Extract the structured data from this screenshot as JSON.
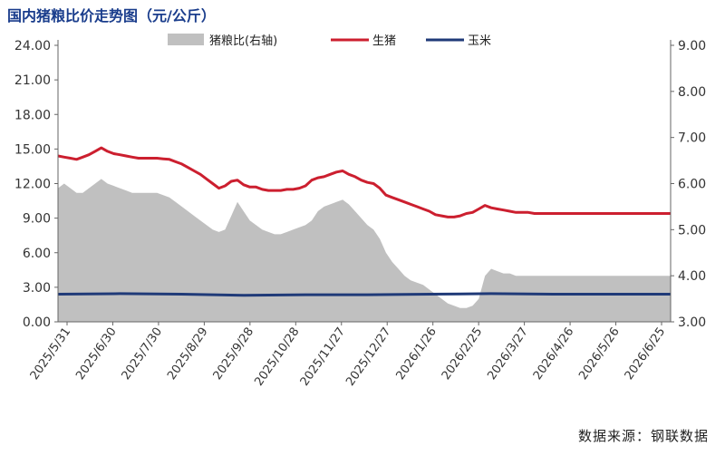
{
  "chart_data": {
    "type": "line",
    "title": "国内猪粮比价走势图（元/公斤）",
    "source": "数据来源：钢联数据",
    "y_left": {
      "ticks": [
        "0.00",
        "3.00",
        "6.00",
        "9.00",
        "12.00",
        "15.00",
        "18.00",
        "21.00",
        "24.00"
      ],
      "ylim": [
        0,
        24
      ]
    },
    "y_right": {
      "ticks": [
        "3.00",
        "4.00",
        "5.00",
        "6.00",
        "7.00",
        "8.00",
        "9.00"
      ],
      "ylim": [
        3,
        9
      ]
    },
    "x_ticks": [
      "2025/5/31",
      "2025/6/30",
      "2025/7/30",
      "2025/8/29",
      "2025/9/28",
      "2025/10/28",
      "2025/11/27",
      "2025/12/27",
      "2026/1/26",
      "2026/2/25",
      "2026/3/27",
      "2026/4/26",
      "2026/5/26",
      "2026/6/25"
    ],
    "grid": false,
    "legend_position": "top",
    "series": [
      {
        "name": "猪粮比(右轴)",
        "kind": "area",
        "axis": "right",
        "color": "#c0c0c0",
        "x": [
          0,
          4,
          8,
          12,
          16,
          20,
          24,
          28,
          32,
          36,
          40,
          44,
          48,
          52,
          56,
          60,
          64,
          68,
          72,
          76,
          80,
          84,
          88,
          92,
          96,
          100,
          104,
          108,
          112,
          116,
          120,
          124,
          128,
          132,
          136,
          140,
          144,
          148,
          152,
          156,
          160,
          164,
          168,
          172,
          176,
          180,
          184,
          188,
          192,
          196,
          200,
          204,
          208,
          212,
          216,
          220,
          224,
          228,
          232,
          236,
          240,
          244,
          248,
          252,
          256,
          260,
          264,
          268,
          272,
          276,
          280,
          284,
          288,
          292,
          296,
          300,
          304,
          308,
          312,
          316,
          320,
          324,
          328,
          332,
          336,
          340,
          344,
          348,
          352,
          356,
          360,
          364,
          368,
          372,
          376,
          380,
          384,
          388,
          392,
          396
        ],
        "values": [
          5.9,
          6.0,
          5.9,
          5.8,
          5.8,
          5.9,
          6.0,
          6.1,
          6.0,
          5.95,
          5.9,
          5.85,
          5.8,
          5.8,
          5.8,
          5.8,
          5.8,
          5.75,
          5.7,
          5.6,
          5.5,
          5.4,
          5.3,
          5.2,
          5.1,
          5.0,
          4.95,
          5.0,
          5.3,
          5.6,
          5.4,
          5.2,
          5.1,
          5.0,
          4.95,
          4.9,
          4.9,
          4.95,
          5.0,
          5.05,
          5.1,
          5.2,
          5.4,
          5.5,
          5.55,
          5.6,
          5.65,
          5.55,
          5.4,
          5.25,
          5.1,
          5.0,
          4.8,
          4.5,
          4.3,
          4.15,
          4.0,
          3.9,
          3.85,
          3.8,
          3.7,
          3.6,
          3.5,
          3.4,
          3.35,
          3.3,
          3.3,
          3.35,
          3.5,
          4.0,
          4.15,
          4.1,
          4.05,
          4.05,
          4.0,
          4.0,
          4.0,
          4.0,
          4.0,
          4.0,
          4.0,
          4.0,
          4.0,
          4.0,
          4.0,
          4.0,
          4.0,
          4.0,
          4.0,
          4.0,
          4.0,
          4.0,
          4.0,
          4.0,
          4.0,
          4.0,
          4.0,
          4.0,
          4.0,
          4.0
        ]
      },
      {
        "name": "生猪",
        "kind": "line",
        "axis": "left",
        "color": "#cc1f2f",
        "x": [
          0,
          4,
          8,
          12,
          16,
          20,
          24,
          28,
          32,
          36,
          40,
          44,
          48,
          52,
          56,
          60,
          64,
          68,
          72,
          76,
          80,
          84,
          88,
          92,
          96,
          100,
          104,
          108,
          112,
          116,
          120,
          124,
          128,
          132,
          136,
          140,
          144,
          148,
          152,
          156,
          160,
          164,
          168,
          172,
          176,
          180,
          184,
          188,
          192,
          196,
          200,
          204,
          208,
          212,
          216,
          220,
          224,
          228,
          232,
          236,
          240,
          244,
          248,
          252,
          256,
          260,
          264,
          268,
          272,
          276,
          280,
          284,
          288,
          292,
          296,
          300,
          304,
          308,
          312,
          316,
          320,
          324,
          328,
          332,
          336,
          340,
          344,
          348,
          352,
          356,
          360,
          364,
          368,
          372,
          376,
          380,
          384,
          388,
          392,
          396
        ],
        "values": [
          14.4,
          14.3,
          14.2,
          14.1,
          14.3,
          14.5,
          14.8,
          15.1,
          14.8,
          14.6,
          14.5,
          14.4,
          14.3,
          14.2,
          14.2,
          14.2,
          14.2,
          14.15,
          14.1,
          13.9,
          13.7,
          13.4,
          13.1,
          12.8,
          12.4,
          12.0,
          11.6,
          11.8,
          12.2,
          12.3,
          11.9,
          11.7,
          11.7,
          11.5,
          11.4,
          11.4,
          11.4,
          11.5,
          11.5,
          11.6,
          11.8,
          12.3,
          12.5,
          12.6,
          12.8,
          13.0,
          13.1,
          12.8,
          12.6,
          12.3,
          12.1,
          12.0,
          11.6,
          11.0,
          10.8,
          10.6,
          10.4,
          10.2,
          10.0,
          9.8,
          9.6,
          9.3,
          9.2,
          9.1,
          9.1,
          9.2,
          9.4,
          9.5,
          9.8,
          10.1,
          9.9,
          9.8,
          9.7,
          9.6,
          9.5,
          9.5,
          9.5,
          9.4,
          9.4,
          9.4,
          9.4,
          9.4,
          9.4,
          9.4,
          9.4,
          9.4,
          9.4,
          9.4,
          9.4,
          9.4,
          9.4,
          9.4,
          9.4,
          9.4,
          9.4,
          9.4,
          9.4,
          9.4,
          9.4,
          9.4
        ]
      },
      {
        "name": "玉米",
        "kind": "line",
        "axis": "left",
        "color": "#1f3a78",
        "x": [
          0,
          40,
          80,
          120,
          160,
          200,
          240,
          280,
          320,
          360,
          396
        ],
        "values": [
          2.4,
          2.45,
          2.4,
          2.3,
          2.35,
          2.35,
          2.4,
          2.45,
          2.4,
          2.4,
          2.4
        ]
      }
    ]
  }
}
